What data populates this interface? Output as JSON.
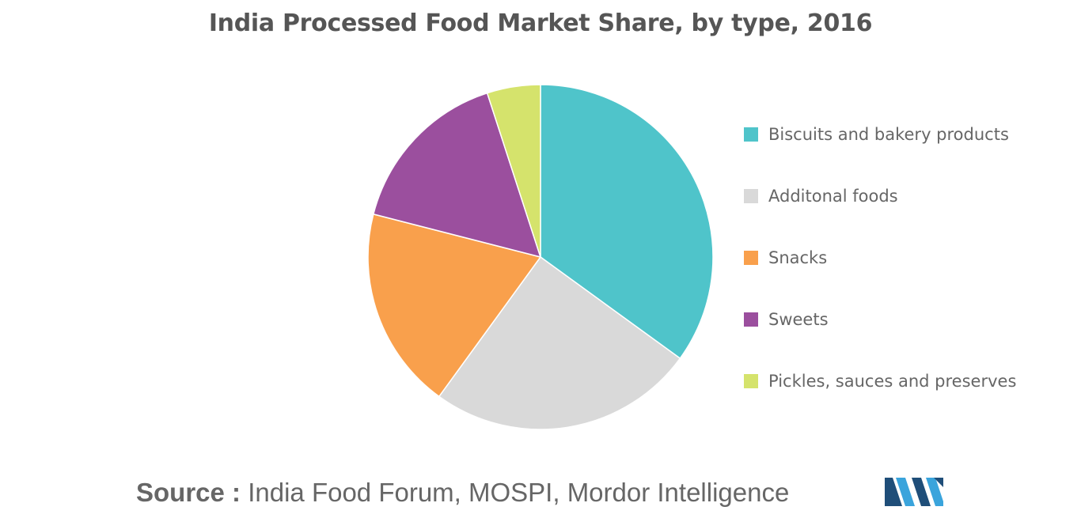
{
  "title": "India Processed Food Market Share, by type, 2016",
  "chart_data": {
    "type": "pie",
    "title": "India Processed Food Market Share, by type, 2016",
    "categories": [
      "Biscuits and bakery products",
      "Additonal foods",
      "Snacks",
      "Sweets",
      "Pickles, sauces and preserves"
    ],
    "values": [
      35,
      25,
      19,
      16,
      5
    ],
    "colors": [
      "#4fc4ca",
      "#d9d9d9",
      "#f9a04c",
      "#9b4f9e",
      "#d5e36c"
    ],
    "legend_position": "right"
  },
  "source": {
    "prefix": "Source :",
    "text": " India Food Forum, MOSPI, Mordor Intelligence"
  },
  "logo": {
    "icon": "mordor-intelligence-logo",
    "colors": [
      "#1f4e79",
      "#3aa4dc"
    ]
  }
}
